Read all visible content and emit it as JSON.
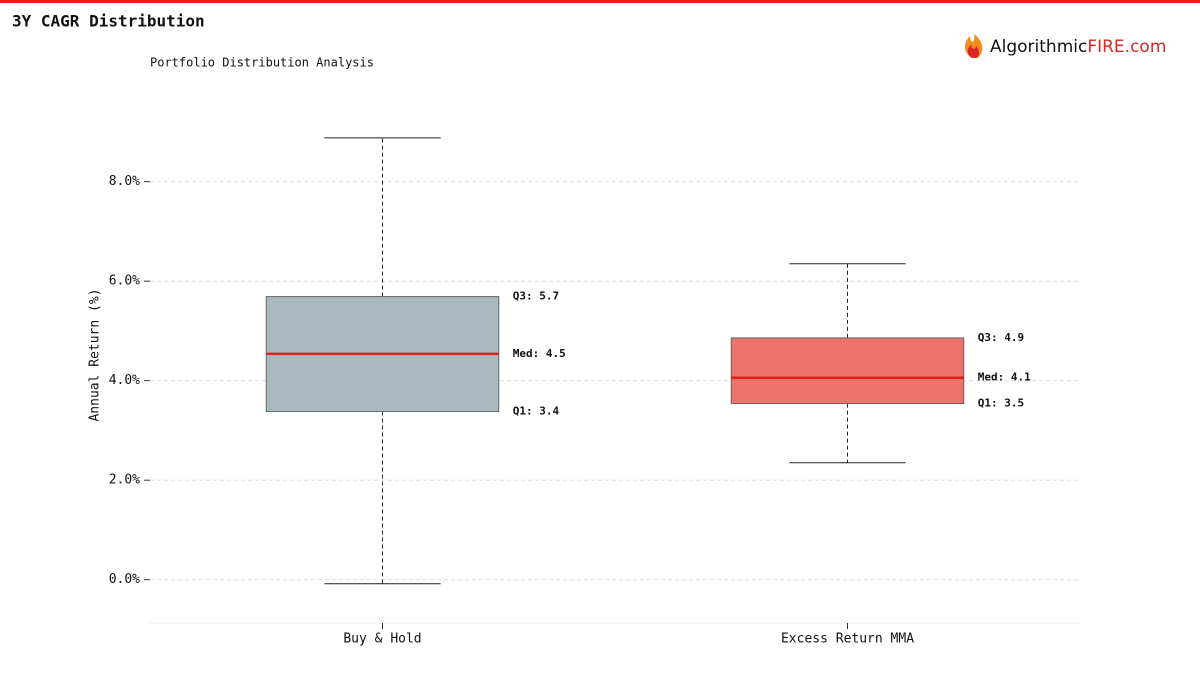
{
  "header": {
    "title": "3Y CAGR Distribution",
    "brand": "Algorithmic",
    "brand_accent": "FIRE.com"
  },
  "chart_data": {
    "type": "box",
    "subtitle": "Portfolio Distribution Analysis",
    "y_label": "Annual Return (%)",
    "ylim": [
      -0.87,
      9.3
    ],
    "yticks": [
      {
        "value": 0,
        "label": "0.0%"
      },
      {
        "value": 2,
        "label": "2.0%"
      },
      {
        "value": 4,
        "label": "4.0%"
      },
      {
        "value": 6,
        "label": "6.0%"
      },
      {
        "value": 8,
        "label": "8.0%"
      }
    ],
    "grid": true,
    "median_color": "#e0201b",
    "series": [
      {
        "name": "Buy & Hold",
        "color": "#aab8bf",
        "whisker_low": -0.08,
        "q1": 3.38,
        "median": 4.54,
        "q3": 5.69,
        "whisker_high": 8.88,
        "value_labels": {
          "q1": "Q1: 3.4",
          "median": "Med: 4.5",
          "q3": "Q3: 5.7"
        }
      },
      {
        "name": "Excess Return MMA",
        "color": "#ee736b",
        "whisker_low": 2.35,
        "q1": 3.54,
        "median": 4.06,
        "q3": 4.86,
        "whisker_high": 6.35,
        "value_labels": {
          "q1": "Q1: 3.5",
          "median": "Med: 4.1",
          "q3": "Q3: 4.9"
        }
      }
    ]
  }
}
